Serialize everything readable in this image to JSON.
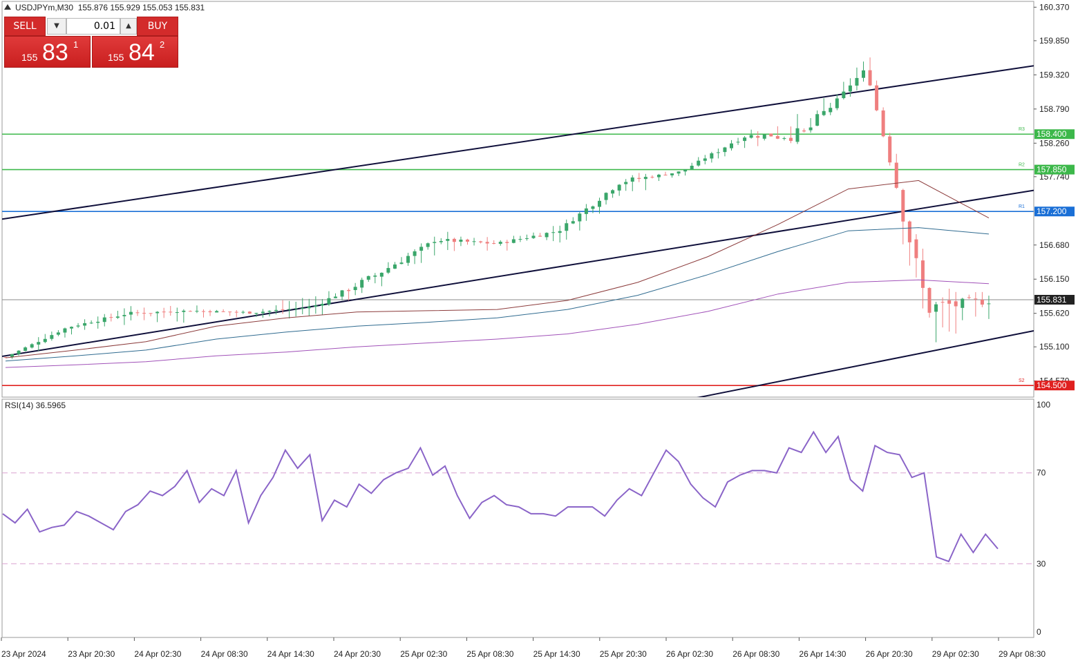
{
  "header": {
    "symbol_icon": "triangle-down-icon",
    "symbol": "USDJPYm,M30",
    "ohlc": "155.876 155.929 155.053 155.831"
  },
  "trade_panel": {
    "sell_label": "SELL",
    "buy_label": "BUY",
    "lot_value": "0.01",
    "sell_price_prefix": "155",
    "sell_price_main": "83",
    "sell_price_sup": "1",
    "buy_price_prefix": "155",
    "buy_price_main": "84",
    "buy_price_sup": "2"
  },
  "colors": {
    "bull": "#3aa66a",
    "bear": "#ef7f7f",
    "channel": "#0f0f3a",
    "pivot_green": "#3cb84a",
    "pivot_blue": "#1a6fd6",
    "pivot_red": "#e0201f",
    "ma_fast": "#8b3a3a",
    "ma_mid": "#2e6a8f",
    "ma_slow": "#a050b8",
    "rsi": "#8a64c8"
  },
  "chart_data": {
    "type": "candlestick",
    "title": "USDJPYm,M30",
    "ylim": [
      154.32,
      160.46
    ],
    "price_ticks": [
      "160.370",
      "159.850",
      "159.320",
      "158.790",
      "158.260",
      "157.740",
      "156.680",
      "156.150",
      "155.620",
      "155.100",
      "154.570"
    ],
    "x_ticks": [
      "23 Apr 2024",
      "23 Apr 20:30",
      "24 Apr 02:30",
      "24 Apr 08:30",
      "24 Apr 14:30",
      "24 Apr 20:30",
      "25 Apr 02:30",
      "25 Apr 08:30",
      "25 Apr 14:30",
      "25 Apr 20:30",
      "26 Apr 02:30",
      "26 Apr 08:30",
      "26 Apr 14:30",
      "26 Apr 20:30",
      "29 Apr 02:30",
      "29 Apr 08:30"
    ],
    "levels": [
      {
        "value": 158.4,
        "label": "158.400",
        "tag": "R3",
        "color": "#3cb84a"
      },
      {
        "value": 157.85,
        "label": "157.850",
        "tag": "R2",
        "color": "#3cb84a"
      },
      {
        "value": 157.2,
        "label": "157.200",
        "tag": "R1",
        "color": "#1a6fd6"
      },
      {
        "value": 154.5,
        "label": "154.500",
        "tag": "S2",
        "color": "#e0201f"
      }
    ],
    "current_price": {
      "value": 155.831,
      "label": "155.831"
    },
    "channel_lines": [
      {
        "from": [
          "23 Apr 2024",
          157.08
        ],
        "to": [
          "29 Apr 08:30",
          159.38
        ]
      },
      {
        "from": [
          "23 Apr 2024",
          154.95
        ],
        "to": [
          "29 Apr 08:30",
          157.44
        ]
      },
      {
        "from": [
          "26 Apr 08:30",
          154.42
        ],
        "to": [
          "29 Apr 08:30",
          155.24
        ]
      }
    ],
    "anchors": [
      {
        "close": 154.94,
        "body": 0.03,
        "up": 0.03,
        "dn": 0.03
      },
      {
        "close": 155.4,
        "body": 0.06,
        "up": 0.08,
        "dn": 0.1
      },
      {
        "close": 155.62,
        "body": 0.08,
        "up": 0.12,
        "dn": 0.14
      },
      {
        "close": 155.66,
        "body": 0.05,
        "up": 0.1,
        "dn": 0.2
      },
      {
        "close": 155.63,
        "body": 0.06,
        "up": 0.08,
        "dn": 0.08
      },
      {
        "close": 155.72,
        "body": 0.1,
        "up": 0.16,
        "dn": 0.15
      },
      {
        "close": 156.2,
        "body": 0.18,
        "up": 0.1,
        "dn": 0.2
      },
      {
        "close": 156.76,
        "body": 0.1,
        "up": 0.14,
        "dn": 0.2
      },
      {
        "close": 156.7,
        "body": 0.08,
        "up": 0.1,
        "dn": 0.12
      },
      {
        "close": 156.9,
        "body": 0.1,
        "up": 0.1,
        "dn": 0.15
      },
      {
        "close": 157.66,
        "body": 0.15,
        "up": 0.1,
        "dn": 0.2
      },
      {
        "close": 157.82,
        "body": 0.06,
        "up": 0.06,
        "dn": 0.08
      },
      {
        "close": 158.37,
        "body": 0.15,
        "up": 0.1,
        "dn": 0.15
      },
      {
        "close": 158.4,
        "body": 0.35,
        "up": 0.25,
        "dn": 0.05
      },
      {
        "close": 159.42,
        "body": 0.05,
        "up": 0.2,
        "dn": 0.1
      },
      {
        "close": 155.7,
        "body": 0.5,
        "up": 0.2,
        "dn": 0.6
      },
      {
        "close": 155.83,
        "body": 0.25,
        "up": 0.15,
        "dn": 0.3
      }
    ],
    "candles_note": "",
    "ma_fast": [
      154.93,
      155.05,
      155.18,
      155.42,
      155.55,
      155.64,
      155.66,
      155.68,
      155.82,
      156.1,
      156.5,
      157.0,
      157.55,
      157.68,
      157.1
    ],
    "ma_mid": [
      154.88,
      154.96,
      155.05,
      155.22,
      155.33,
      155.42,
      155.48,
      155.55,
      155.68,
      155.9,
      156.22,
      156.58,
      156.9,
      156.95,
      156.85
    ],
    "ma_slow": [
      154.78,
      154.82,
      154.87,
      154.96,
      155.02,
      155.1,
      155.16,
      155.22,
      155.3,
      155.45,
      155.65,
      155.92,
      156.1,
      156.14,
      156.08
    ],
    "rsi": {
      "label": "RSI(14) 36.5965",
      "period": 14,
      "value": 36.5965,
      "ylim": [
        0,
        100
      ],
      "ticks": [
        "100",
        "70",
        "30",
        "0"
      ],
      "levels": [
        70,
        30
      ],
      "values": [
        52,
        48,
        54,
        44,
        46,
        47,
        53,
        51,
        48,
        45,
        53,
        56,
        62,
        60,
        64,
        71,
        57,
        63,
        60,
        71,
        48,
        60,
        68,
        80,
        72,
        78,
        49,
        58,
        55,
        65,
        61,
        67,
        70,
        72,
        81,
        69,
        73,
        60,
        50,
        57,
        60,
        56,
        55,
        52,
        52,
        51,
        55,
        55,
        55,
        51,
        58,
        63,
        60,
        70,
        80,
        75,
        65,
        59,
        55,
        66,
        69,
        71,
        71,
        70,
        81,
        79,
        88,
        79,
        86,
        67,
        62,
        82,
        79,
        78,
        68,
        70,
        33,
        31,
        43,
        35,
        43,
        36.6
      ]
    }
  }
}
